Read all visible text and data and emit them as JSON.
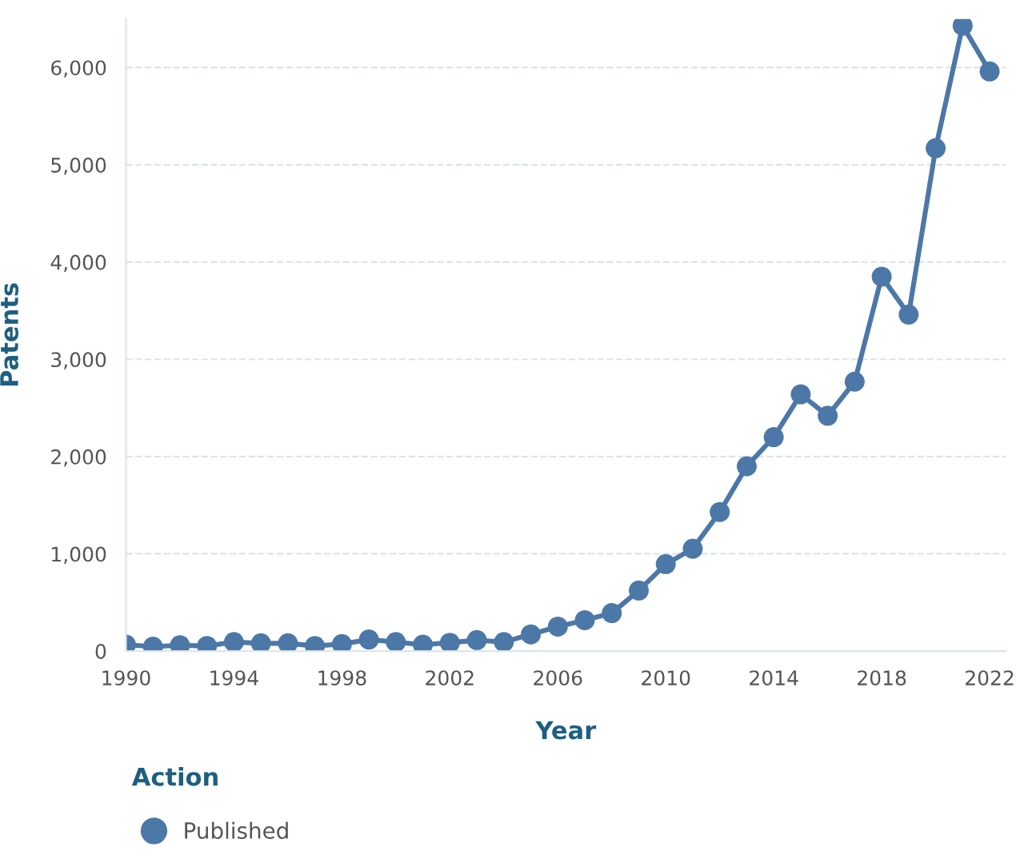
{
  "chart_data": {
    "type": "line",
    "xlabel": "Year",
    "ylabel": "Patents",
    "legend_title": "Action",
    "x": [
      1990,
      1991,
      1992,
      1993,
      1994,
      1995,
      1996,
      1997,
      1998,
      1999,
      2000,
      2001,
      2002,
      2003,
      2004,
      2005,
      2006,
      2007,
      2008,
      2009,
      2010,
      2011,
      2012,
      2013,
      2014,
      2015,
      2016,
      2017,
      2018,
      2019,
      2020,
      2021,
      2022
    ],
    "series": [
      {
        "name": "Published",
        "color": "#4c78a8",
        "values": [
          66,
          46,
          60,
          53,
          93,
          80,
          80,
          53,
          73,
          119,
          93,
          66,
          86,
          113,
          93,
          172,
          252,
          318,
          391,
          623,
          894,
          1053,
          1430,
          1900,
          2200,
          2640,
          2420,
          2770,
          3850,
          3460,
          5170,
          6430,
          5960
        ]
      }
    ],
    "xlim": [
      1990,
      2022.6
    ],
    "xticks": [
      1990,
      1994,
      1998,
      2002,
      2006,
      2010,
      2014,
      2018,
      2022
    ],
    "ylim": [
      0,
      6500
    ],
    "yticks": [
      {
        "value": 0,
        "label": "0"
      },
      {
        "value": 1000,
        "label": "1,000"
      },
      {
        "value": 2000,
        "label": "2,000"
      },
      {
        "value": 3000,
        "label": "3,000"
      },
      {
        "value": 4000,
        "label": "4,000"
      },
      {
        "value": 5000,
        "label": "5,000"
      },
      {
        "value": 6000,
        "label": "6,000"
      }
    ],
    "grid": "y",
    "legend": "bottom",
    "marker": "circle",
    "line_style": "solid"
  }
}
